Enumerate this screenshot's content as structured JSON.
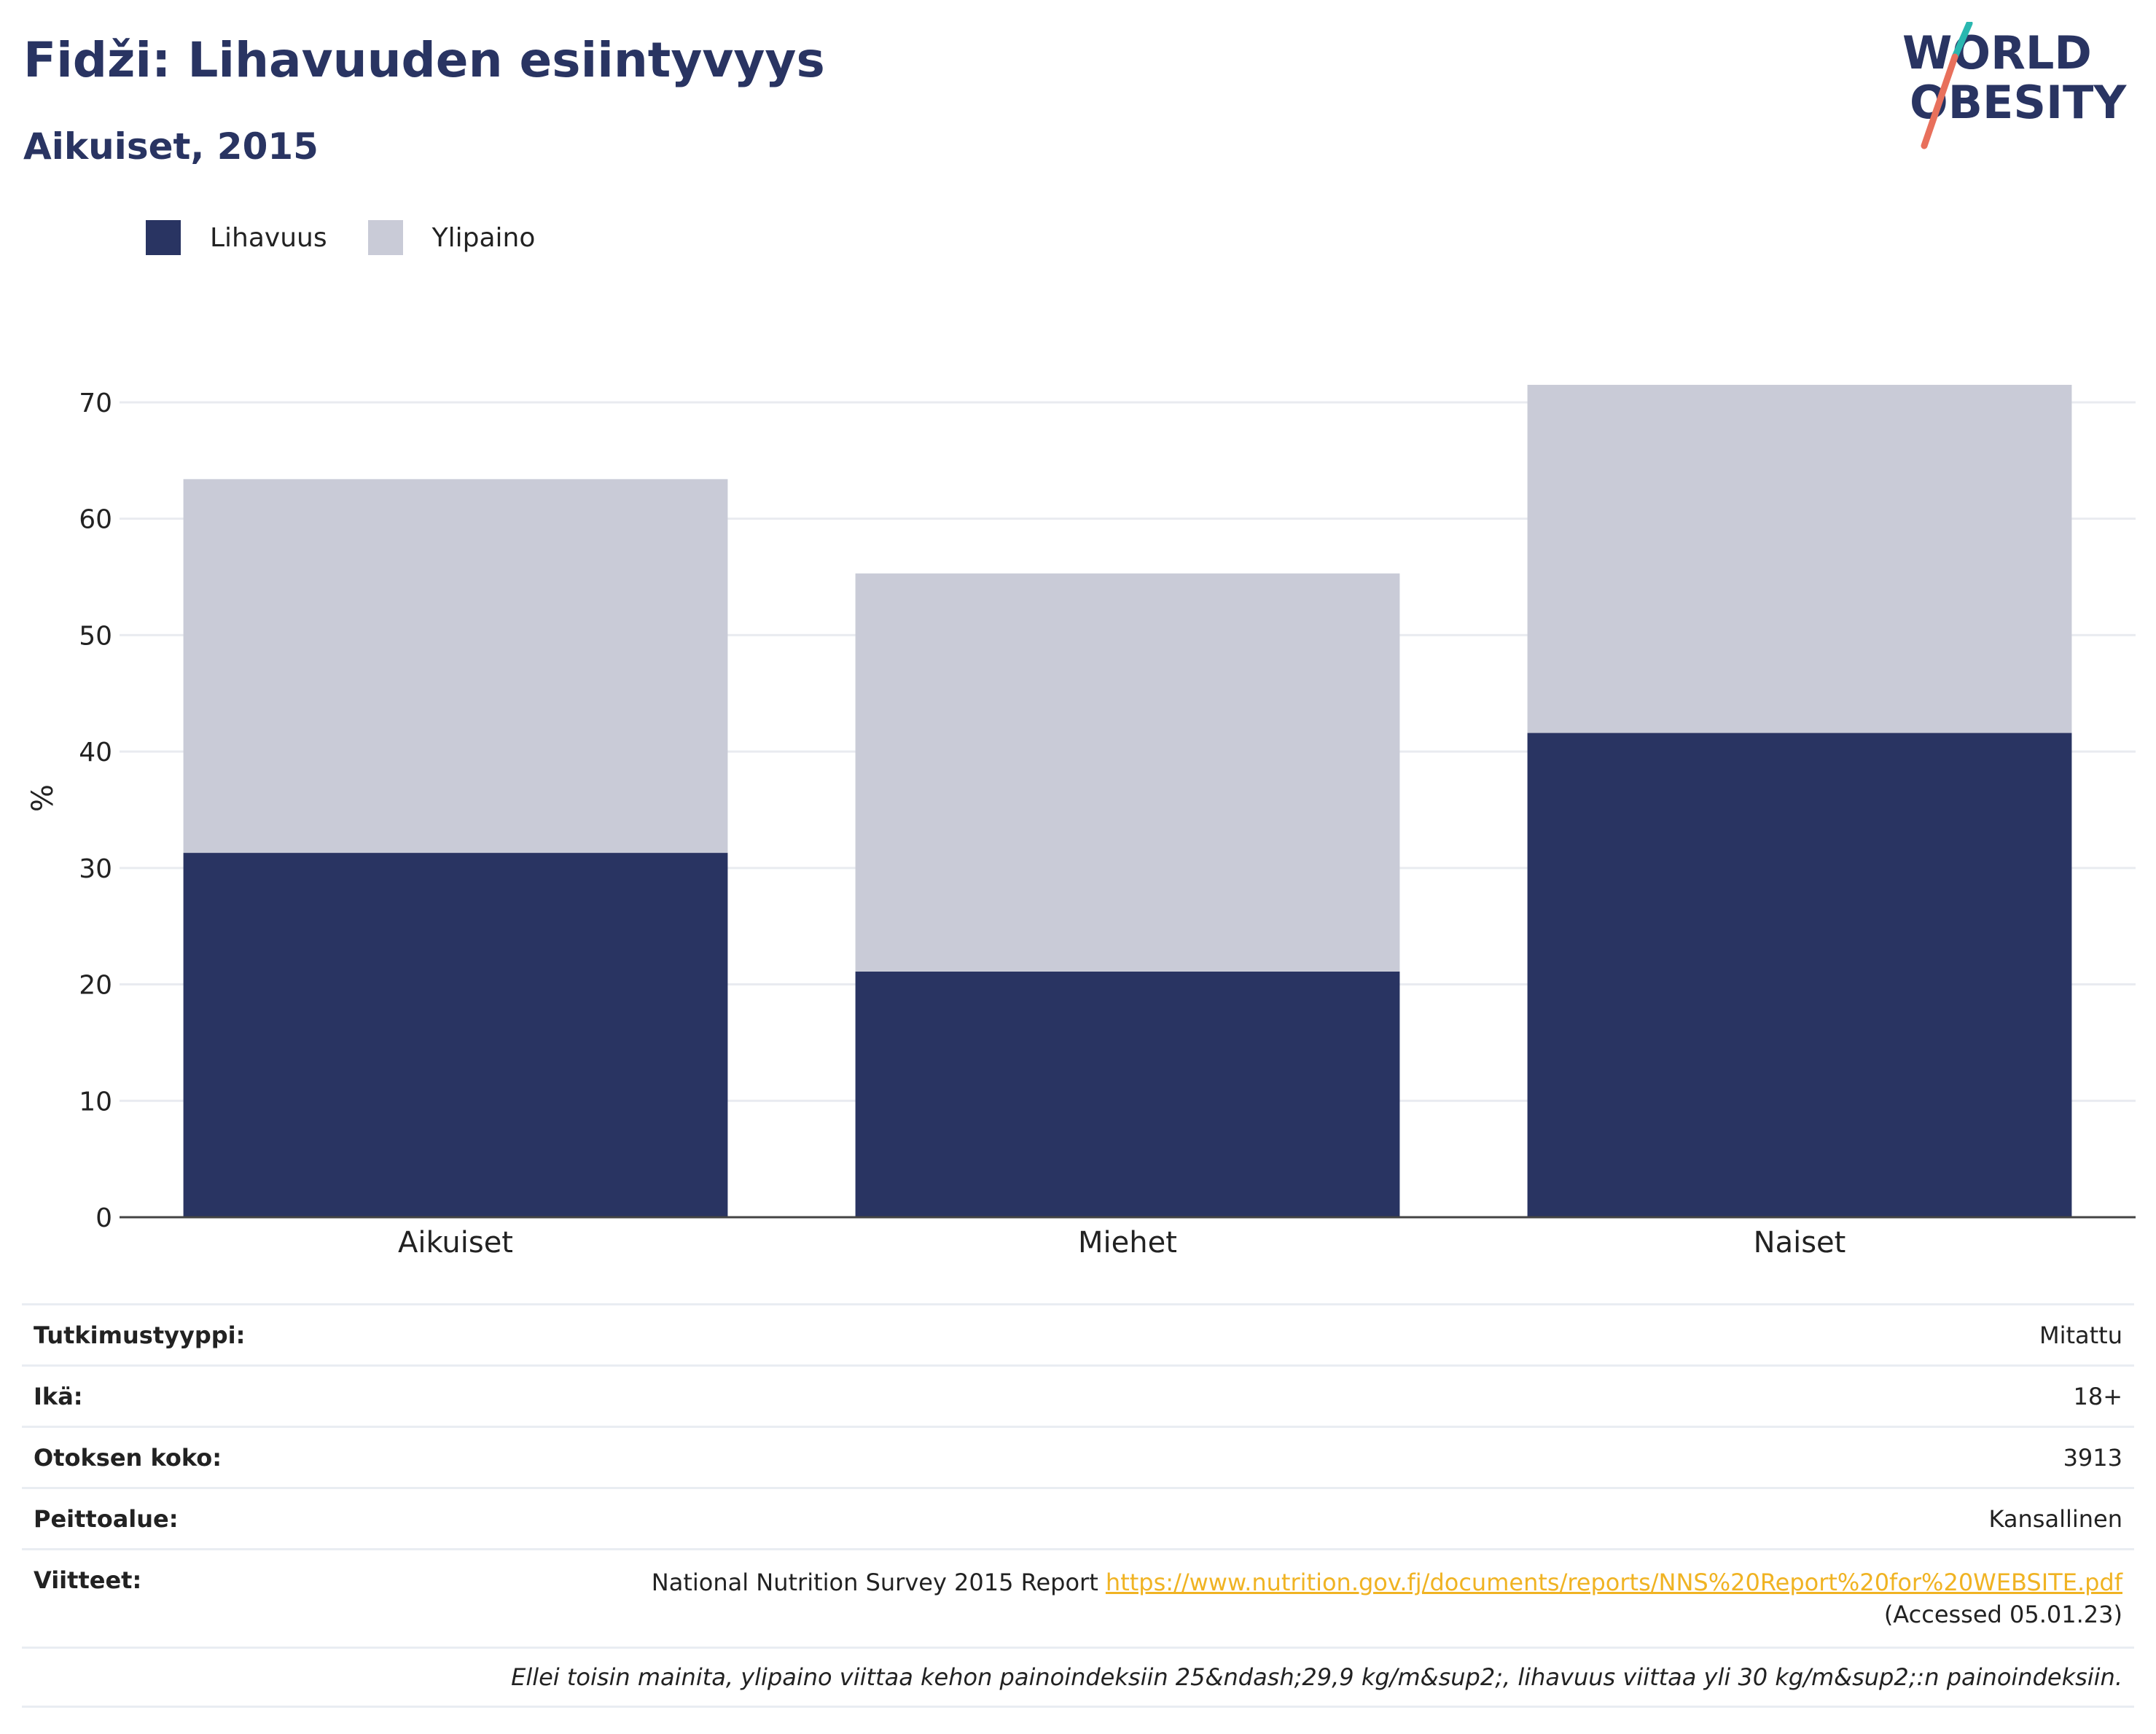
{
  "header": {
    "title": "Fidži: Lihavuuden esiintyvyys",
    "subtitle": "Aikuiset, 2015"
  },
  "logo": {
    "line1": "WORLD",
    "line2": "OBESITY",
    "accent_colors": [
      "#2ab7b0",
      "#e8705c"
    ]
  },
  "chart_data": {
    "type": "bar",
    "stacked": true,
    "categories": [
      "Aikuiset",
      "Miehet",
      "Naiset"
    ],
    "series": [
      {
        "name": "Lihavuus",
        "color": "#293462",
        "values": [
          31.3,
          21.1,
          41.6
        ]
      },
      {
        "name": "Ylipaino",
        "color": "#c9cbd7",
        "values": [
          32.1,
          34.2,
          29.9
        ]
      }
    ],
    "totals": [
      63.4,
      55.3,
      71.5
    ],
    "ylabel": "%",
    "xlabel": "",
    "ylim": [
      0,
      72
    ],
    "yticks": [
      0,
      10,
      20,
      30,
      40,
      50,
      60,
      70
    ],
    "grid": true,
    "legend_position": "top-left"
  },
  "meta": {
    "study_type_label": "Tutkimustyyppi:",
    "study_type_value": "Mitattu",
    "age_label": "Ikä:",
    "age_value": "18+",
    "sample_label": "Otoksen koko:",
    "sample_value": "3913",
    "coverage_label": "Peittoalue:",
    "coverage_value": "Kansallinen",
    "refs_label": "Viitteet:",
    "refs_text": "National Nutrition Survey 2015 Report ",
    "refs_link": "https://www.nutrition.gov.fj/documents/reports/NNS%20Report%20for%20WEBSITE.pdf",
    "refs_accessed": "(Accessed 05.01.23)",
    "note": "Ellei toisin mainita, ylipaino viittaa kehon painoindeksiin 25&ndash;29,9 kg/m&sup2;, lihavuus viittaa yli 30 kg/m&sup2;:n painoindeksiin."
  }
}
